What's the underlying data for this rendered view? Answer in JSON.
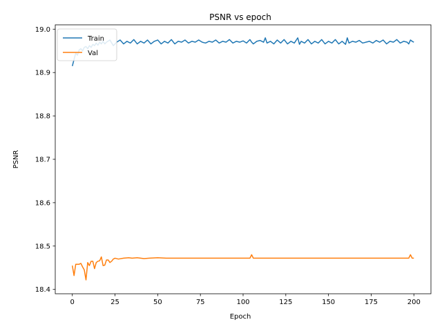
{
  "chart_data": {
    "type": "line",
    "title": "PSNR vs epoch",
    "xlabel": "Epoch",
    "ylabel": "PSNR",
    "xlim": [
      -10,
      210
    ],
    "ylim": [
      18.39,
      19.01
    ],
    "xticks": [
      0,
      25,
      50,
      75,
      100,
      125,
      150,
      175,
      200
    ],
    "yticks": [
      18.4,
      18.5,
      18.6,
      18.7,
      18.8,
      18.9,
      19.0
    ],
    "ytick_labels": [
      "18.4",
      "18.5",
      "18.6",
      "18.7",
      "18.8",
      "18.9",
      "19.0"
    ],
    "grid": false,
    "legend_position": "top-left",
    "series": [
      {
        "name": "Train",
        "color": "#1f77b4",
        "points": [
          [
            0,
            18.915
          ],
          [
            1,
            18.93
          ],
          [
            2,
            18.945
          ],
          [
            3,
            18.94
          ],
          [
            4,
            18.952
          ],
          [
            5,
            18.955
          ],
          [
            6,
            18.95
          ],
          [
            7,
            18.958
          ],
          [
            8,
            18.96
          ],
          [
            9,
            18.955
          ],
          [
            10,
            18.962
          ],
          [
            11,
            18.958
          ],
          [
            12,
            18.965
          ],
          [
            13,
            18.962
          ],
          [
            14,
            18.968
          ],
          [
            15,
            18.963
          ],
          [
            16,
            18.97
          ],
          [
            17,
            18.966
          ],
          [
            18,
            18.972
          ],
          [
            19,
            18.966
          ],
          [
            20,
            18.97
          ],
          [
            22,
            18.975
          ],
          [
            24,
            18.962
          ],
          [
            26,
            18.97
          ],
          [
            28,
            18.975
          ],
          [
            30,
            18.966
          ],
          [
            32,
            18.972
          ],
          [
            34,
            18.968
          ],
          [
            36,
            18.976
          ],
          [
            38,
            18.966
          ],
          [
            40,
            18.972
          ],
          [
            42,
            18.968
          ],
          [
            44,
            18.975
          ],
          [
            46,
            18.966
          ],
          [
            48,
            18.972
          ],
          [
            50,
            18.975
          ],
          [
            52,
            18.966
          ],
          [
            54,
            18.972
          ],
          [
            56,
            18.968
          ],
          [
            58,
            18.976
          ],
          [
            60,
            18.966
          ],
          [
            62,
            18.972
          ],
          [
            64,
            18.97
          ],
          [
            66,
            18.975
          ],
          [
            68,
            18.968
          ],
          [
            70,
            18.972
          ],
          [
            72,
            18.97
          ],
          [
            74,
            18.975
          ],
          [
            76,
            18.97
          ],
          [
            78,
            18.968
          ],
          [
            80,
            18.972
          ],
          [
            82,
            18.97
          ],
          [
            84,
            18.975
          ],
          [
            86,
            18.968
          ],
          [
            88,
            18.972
          ],
          [
            90,
            18.97
          ],
          [
            92,
            18.976
          ],
          [
            94,
            18.968
          ],
          [
            96,
            18.972
          ],
          [
            98,
            18.97
          ],
          [
            100,
            18.973
          ],
          [
            102,
            18.968
          ],
          [
            104,
            18.976
          ],
          [
            105,
            18.97
          ],
          [
            106,
            18.966
          ],
          [
            108,
            18.972
          ],
          [
            110,
            18.974
          ],
          [
            112,
            18.97
          ],
          [
            113,
            18.98
          ],
          [
            114,
            18.968
          ],
          [
            116,
            18.972
          ],
          [
            118,
            18.966
          ],
          [
            120,
            18.975
          ],
          [
            122,
            18.968
          ],
          [
            124,
            18.976
          ],
          [
            126,
            18.966
          ],
          [
            128,
            18.972
          ],
          [
            130,
            18.968
          ],
          [
            132,
            18.98
          ],
          [
            133,
            18.965
          ],
          [
            134,
            18.972
          ],
          [
            136,
            18.968
          ],
          [
            138,
            18.976
          ],
          [
            140,
            18.966
          ],
          [
            142,
            18.972
          ],
          [
            144,
            18.968
          ],
          [
            146,
            18.976
          ],
          [
            148,
            18.966
          ],
          [
            150,
            18.972
          ],
          [
            152,
            18.968
          ],
          [
            154,
            18.976
          ],
          [
            156,
            18.966
          ],
          [
            158,
            18.972
          ],
          [
            160,
            18.965
          ],
          [
            161,
            18.98
          ],
          [
            162,
            18.968
          ],
          [
            164,
            18.972
          ],
          [
            166,
            18.97
          ],
          [
            168,
            18.974
          ],
          [
            170,
            18.968
          ],
          [
            172,
            18.97
          ],
          [
            174,
            18.972
          ],
          [
            176,
            18.968
          ],
          [
            178,
            18.974
          ],
          [
            180,
            18.97
          ],
          [
            182,
            18.975
          ],
          [
            184,
            18.966
          ],
          [
            186,
            18.972
          ],
          [
            188,
            18.97
          ],
          [
            190,
            18.976
          ],
          [
            192,
            18.968
          ],
          [
            194,
            18.972
          ],
          [
            196,
            18.97
          ],
          [
            197,
            18.966
          ],
          [
            198,
            18.975
          ],
          [
            199,
            18.972
          ],
          [
            200,
            18.97
          ]
        ]
      },
      {
        "name": "Val",
        "color": "#ff7f0e",
        "points": [
          [
            0,
            18.455
          ],
          [
            1,
            18.432
          ],
          [
            2,
            18.458
          ],
          [
            3,
            18.458
          ],
          [
            4,
            18.458
          ],
          [
            5,
            18.46
          ],
          [
            6,
            18.452
          ],
          [
            7,
            18.445
          ],
          [
            8,
            18.422
          ],
          [
            9,
            18.462
          ],
          [
            10,
            18.455
          ],
          [
            11,
            18.465
          ],
          [
            12,
            18.465
          ],
          [
            13,
            18.448
          ],
          [
            14,
            18.462
          ],
          [
            15,
            18.465
          ],
          [
            16,
            18.466
          ],
          [
            17,
            18.475
          ],
          [
            18,
            18.455
          ],
          [
            19,
            18.456
          ],
          [
            20,
            18.468
          ],
          [
            21,
            18.468
          ],
          [
            22,
            18.462
          ],
          [
            23,
            18.465
          ],
          [
            24,
            18.47
          ],
          [
            25,
            18.472
          ],
          [
            27,
            18.47
          ],
          [
            30,
            18.472
          ],
          [
            33,
            18.473
          ],
          [
            35,
            18.472
          ],
          [
            38,
            18.473
          ],
          [
            40,
            18.472
          ],
          [
            42,
            18.471
          ],
          [
            45,
            18.472
          ],
          [
            50,
            18.473
          ],
          [
            55,
            18.472
          ],
          [
            60,
            18.472
          ],
          [
            70,
            18.472
          ],
          [
            80,
            18.472
          ],
          [
            90,
            18.472
          ],
          [
            100,
            18.472
          ],
          [
            104,
            18.472
          ],
          [
            105,
            18.48
          ],
          [
            106,
            18.472
          ],
          [
            110,
            18.472
          ],
          [
            120,
            18.472
          ],
          [
            130,
            18.472
          ],
          [
            140,
            18.472
          ],
          [
            150,
            18.472
          ],
          [
            160,
            18.472
          ],
          [
            170,
            18.472
          ],
          [
            180,
            18.472
          ],
          [
            190,
            18.472
          ],
          [
            197,
            18.472
          ],
          [
            198,
            18.48
          ],
          [
            199,
            18.472
          ],
          [
            200,
            18.472
          ]
        ]
      }
    ]
  }
}
